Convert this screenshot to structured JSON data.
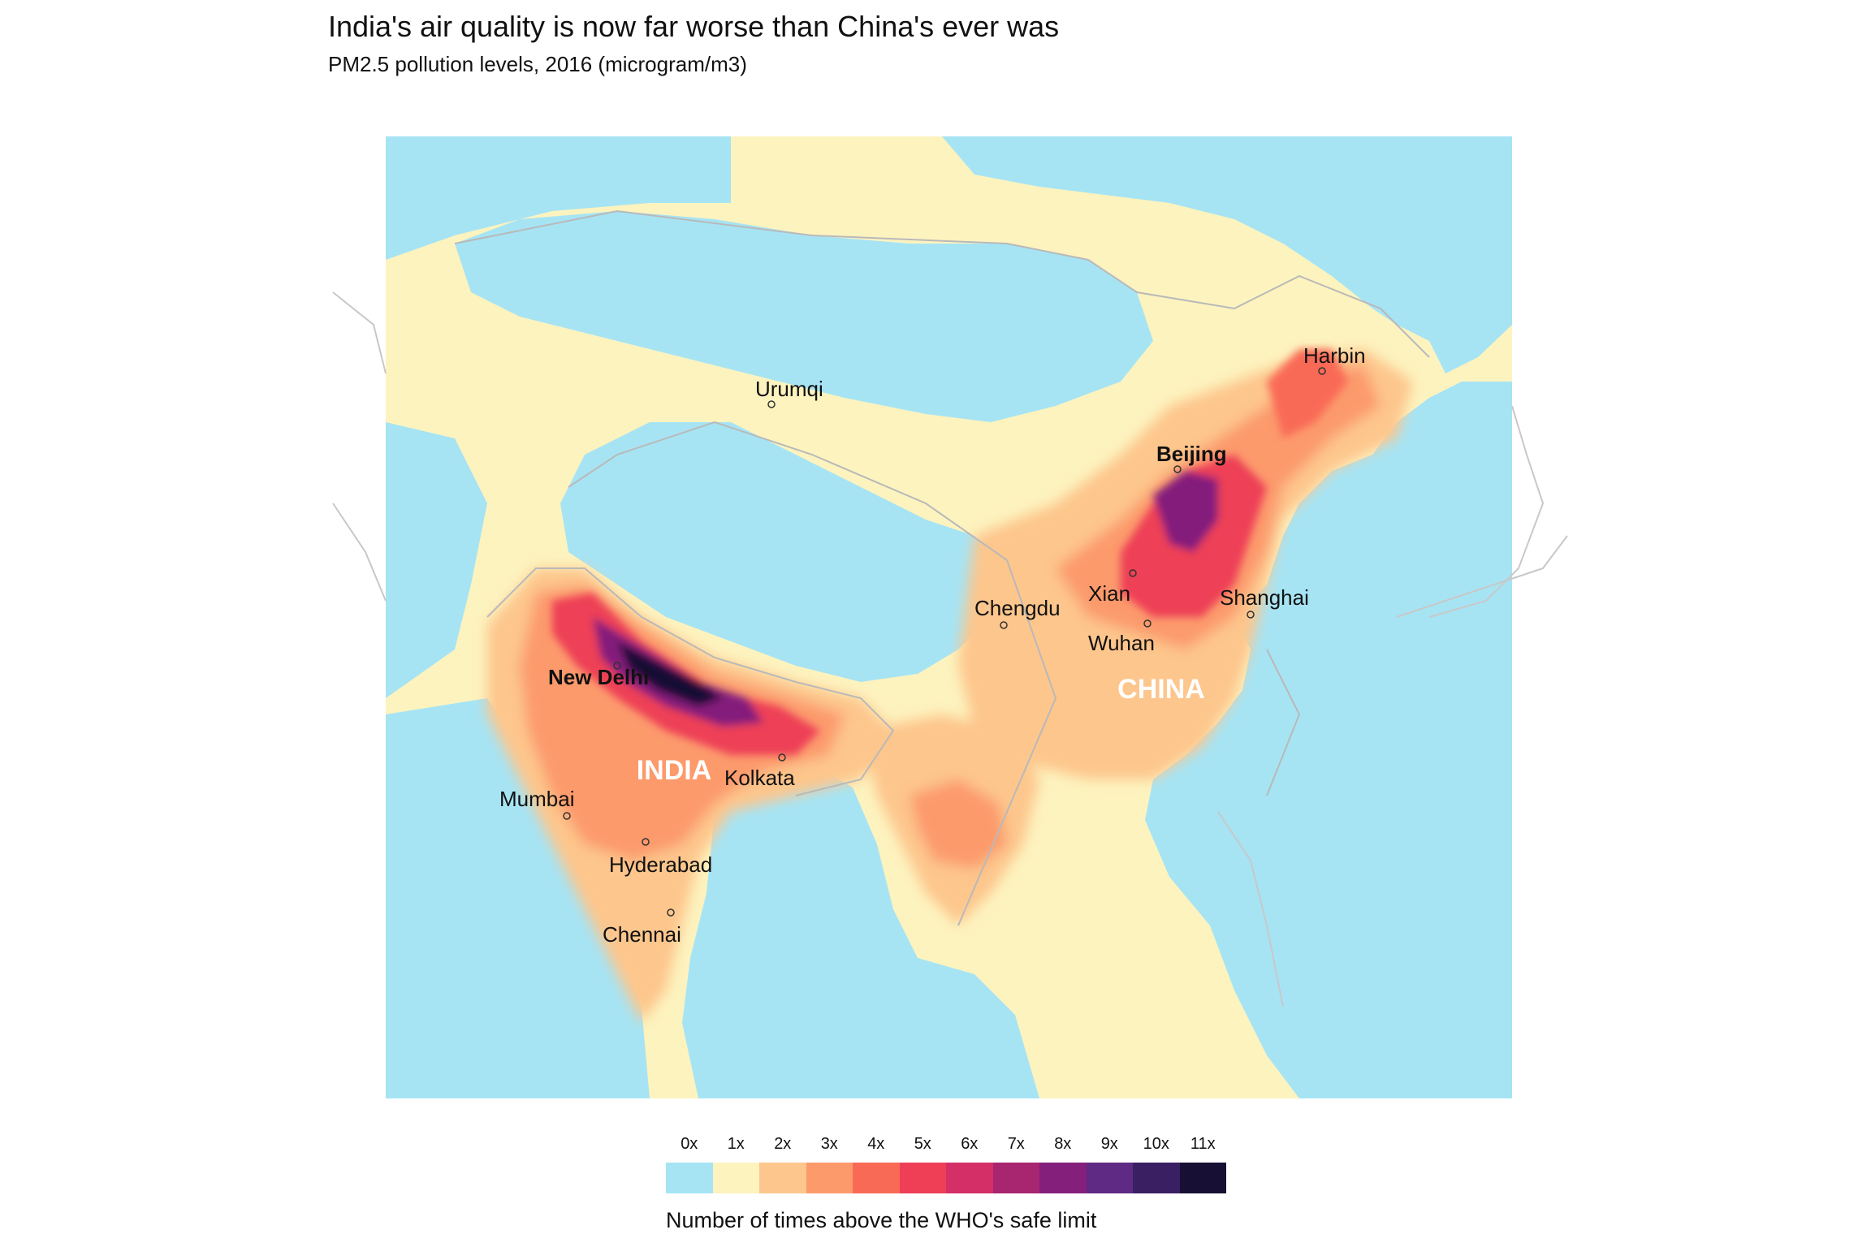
{
  "title": "India's air quality is now far worse than China's ever was",
  "subtitle": "PM2.5 pollution levels, 2016 (microgram/m3)",
  "countries": [
    "INDIA",
    "CHINA"
  ],
  "cities": [
    {
      "name": "Urumqi",
      "bold": false
    },
    {
      "name": "Harbin",
      "bold": false
    },
    {
      "name": "Beijing",
      "bold": true
    },
    {
      "name": "Xian",
      "bold": false
    },
    {
      "name": "Shanghai",
      "bold": false
    },
    {
      "name": "Chengdu",
      "bold": false
    },
    {
      "name": "Wuhan",
      "bold": false
    },
    {
      "name": "New Delhi",
      "bold": true
    },
    {
      "name": "Kolkata",
      "bold": false
    },
    {
      "name": "Mumbai",
      "bold": false
    },
    {
      "name": "Hyderabad",
      "bold": false
    },
    {
      "name": "Chennai",
      "bold": false
    }
  ],
  "legend": {
    "caption": "Number of times above the WHO's safe limit",
    "labels": [
      "0x",
      "1x",
      "2x",
      "3x",
      "4x",
      "5x",
      "6x",
      "7x",
      "8x",
      "9x",
      "10x",
      "11x"
    ],
    "colors": [
      "#a6e4f4",
      "#fdf3bf",
      "#fdc68c",
      "#fc9a6c",
      "#f96a56",
      "#ee3f57",
      "#d42f67",
      "#a8256f",
      "#841f7c",
      "#5f2a84",
      "#3a1f62",
      "#180f34"
    ]
  }
}
